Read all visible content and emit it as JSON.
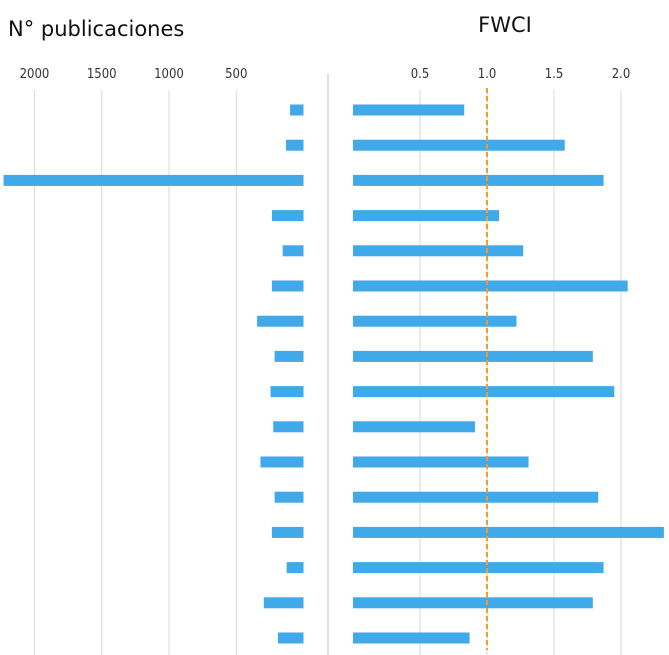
{
  "chart_data": [
    {
      "type": "bar",
      "orientation": "horizontal-reversed",
      "title": "N° publicaciones",
      "xlabel": "",
      "ylabel": "",
      "xlim": [
        0,
        2230
      ],
      "ticks": [
        2000,
        1500,
        1000,
        500
      ],
      "tick_labels": [
        "2000",
        "1500",
        "1000",
        "500"
      ],
      "grid": true,
      "bar_color": "#3fa9ea",
      "values": [
        100,
        130,
        2230,
        235,
        155,
        235,
        345,
        215,
        245,
        225,
        320,
        215,
        235,
        125,
        295,
        190
      ]
    },
    {
      "type": "bar",
      "orientation": "horizontal",
      "title": "FWCI",
      "xlabel": "",
      "ylabel": "",
      "xlim": [
        0,
        2.32
      ],
      "ticks": [
        0.5,
        1.0,
        1.5,
        2.0
      ],
      "tick_labels": [
        "0.5",
        "1.0",
        "1.5",
        "2.0"
      ],
      "grid": true,
      "bar_color": "#3fa9ea",
      "reference_line": {
        "value": 1.0,
        "color": "#f39c34",
        "style": "dashed"
      },
      "values": [
        0.83,
        1.58,
        1.87,
        1.09,
        1.27,
        2.05,
        1.22,
        1.79,
        1.95,
        0.91,
        1.31,
        1.83,
        2.32,
        1.87,
        1.79,
        0.87
      ]
    }
  ]
}
